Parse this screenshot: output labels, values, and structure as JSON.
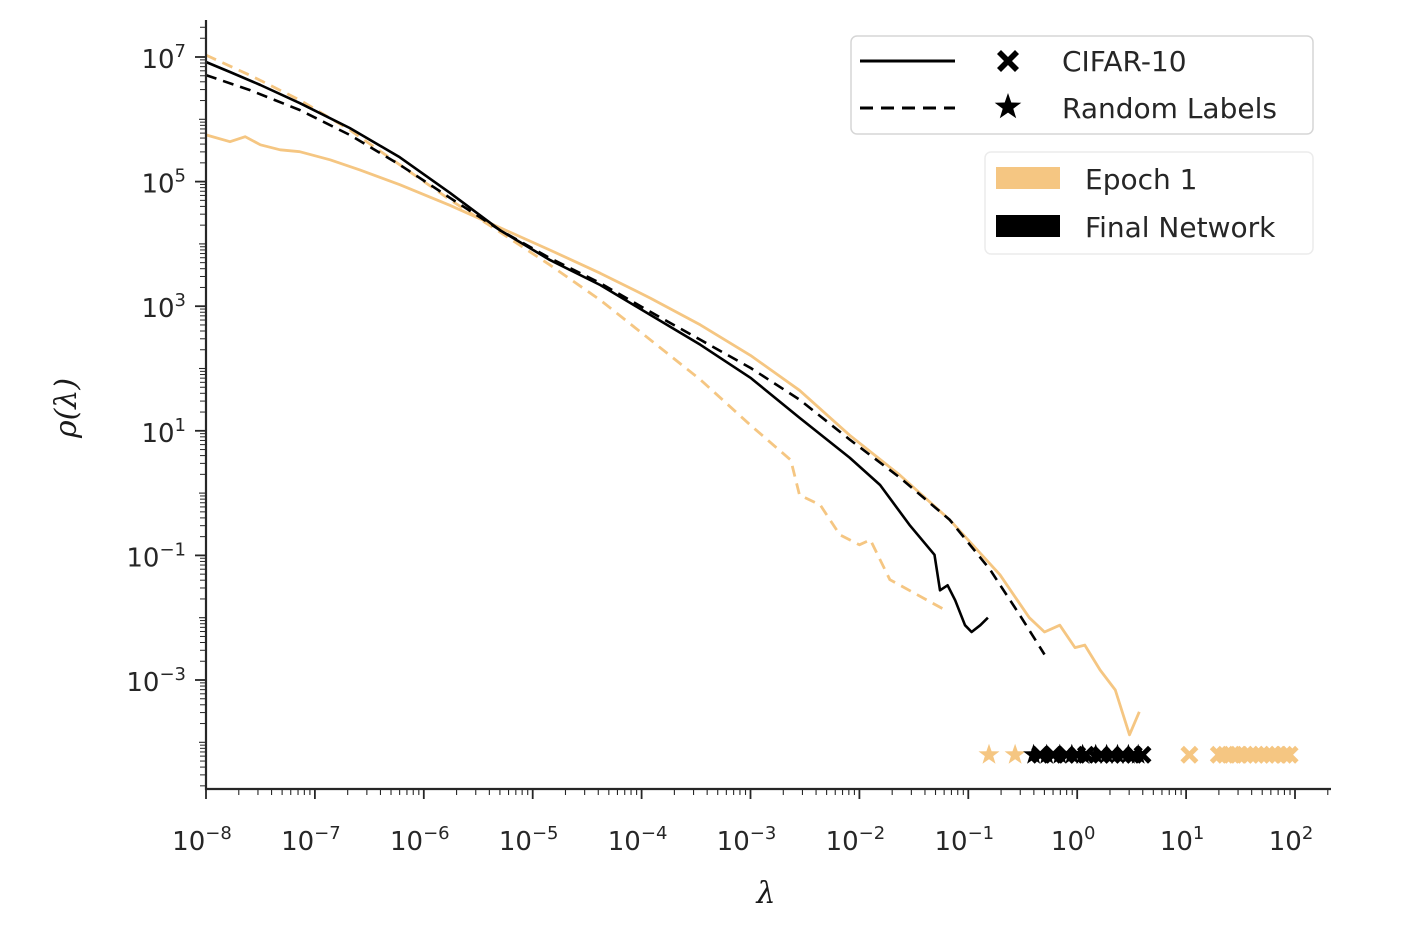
{
  "chart_data": {
    "type": "line",
    "title": "",
    "xlabel": "λ",
    "ylabel": "ρ(λ)",
    "xscale": "log",
    "yscale": "log",
    "xlim_log10": [
      -8.0,
      2.32
    ],
    "ylim_log10": [
      -4.73,
      7.6
    ],
    "grid": false,
    "x_ticks": [
      {
        "base": "10",
        "exp": "−8",
        "log10": -8
      },
      {
        "base": "10",
        "exp": "−7",
        "log10": -7
      },
      {
        "base": "10",
        "exp": "−6",
        "log10": -6
      },
      {
        "base": "10",
        "exp": "−5",
        "log10": -5
      },
      {
        "base": "10",
        "exp": "−4",
        "log10": -4
      },
      {
        "base": "10",
        "exp": "−3",
        "log10": -3
      },
      {
        "base": "10",
        "exp": "−2",
        "log10": -2
      },
      {
        "base": "10",
        "exp": "−1",
        "log10": -1
      },
      {
        "base": "10",
        "exp": "0",
        "log10": 0
      },
      {
        "base": "10",
        "exp": "1",
        "log10": 1
      },
      {
        "base": "10",
        "exp": "2",
        "log10": 2
      }
    ],
    "y_ticks": [
      {
        "base": "10",
        "exp": "7",
        "log10": 7
      },
      {
        "base": "10",
        "exp": "5",
        "log10": 5
      },
      {
        "base": "10",
        "exp": "3",
        "log10": 3
      },
      {
        "base": "10",
        "exp": "1",
        "log10": 1
      },
      {
        "base": "10",
        "exp": "−1",
        "log10": -1
      },
      {
        "base": "10",
        "exp": "−3",
        "log10": -3
      }
    ],
    "colors": {
      "epoch1": "#F5C682",
      "final": "#000000",
      "axis": "#262626"
    },
    "series": [
      {
        "name": "CIFAR-10, Epoch 1",
        "dataset": "CIFAR-10",
        "stage": "Epoch 1",
        "style": "solid",
        "color": "#F5C682",
        "log10_x": [
          -8.0,
          -7.78,
          -7.64,
          -7.5,
          -7.32,
          -7.14,
          -6.86,
          -6.59,
          -6.22,
          -5.76,
          -5.3,
          -4.84,
          -4.38,
          -3.92,
          -3.46,
          -3.0,
          -2.55,
          -2.09,
          -1.63,
          -1.17,
          -0.71,
          -0.44,
          -0.3,
          -0.16,
          -0.02,
          0.07,
          0.21,
          0.35,
          0.48,
          0.57
        ],
        "log10_y": [
          5.75,
          5.64,
          5.72,
          5.59,
          5.51,
          5.48,
          5.35,
          5.19,
          4.95,
          4.62,
          4.26,
          3.9,
          3.53,
          3.13,
          2.7,
          2.21,
          1.65,
          0.93,
          0.29,
          -0.43,
          -1.31,
          -2.0,
          -2.23,
          -2.12,
          -2.48,
          -2.44,
          -2.84,
          -3.16,
          -3.88,
          -3.51
        ]
      },
      {
        "name": "CIFAR-10, Final Network",
        "dataset": "CIFAR-10",
        "stage": "Final Network",
        "style": "solid",
        "color": "#000000",
        "log10_x": [
          -8.0,
          -7.78,
          -7.5,
          -7.14,
          -6.68,
          -6.22,
          -5.76,
          -5.3,
          -4.84,
          -4.38,
          -3.92,
          -3.46,
          -3.0,
          -2.55,
          -2.09,
          -1.81,
          -1.54,
          -1.31,
          -1.26,
          -1.19,
          -1.12,
          -1.03,
          -0.97,
          -0.89,
          -0.82
        ],
        "log10_y": [
          6.92,
          6.76,
          6.55,
          6.26,
          5.86,
          5.39,
          4.82,
          4.22,
          3.74,
          3.34,
          2.86,
          2.38,
          1.85,
          1.21,
          0.57,
          0.13,
          -0.51,
          -0.99,
          -1.56,
          -1.48,
          -1.72,
          -2.12,
          -2.23,
          -2.12,
          -2.0
        ]
      },
      {
        "name": "Random Labels, Epoch 1",
        "dataset": "Random Labels",
        "stage": "Epoch 1",
        "style": "dashed",
        "color": "#F5C682",
        "log10_x": [
          -8.0,
          -7.6,
          -7.14,
          -6.68,
          -6.22,
          -5.76,
          -5.3,
          -4.84,
          -4.38,
          -3.92,
          -3.46,
          -3.0,
          -2.63,
          -2.55,
          -2.36,
          -2.18,
          -2.0,
          -1.9,
          -1.72,
          -1.22
        ],
        "log10_y": [
          7.03,
          6.71,
          6.31,
          5.83,
          5.27,
          4.71,
          4.19,
          3.66,
          3.1,
          2.46,
          1.82,
          1.09,
          0.53,
          -0.03,
          -0.19,
          -0.67,
          -0.83,
          -0.75,
          -1.39,
          -1.87
        ]
      },
      {
        "name": "Random Labels, Final Network",
        "dataset": "Random Labels",
        "stage": "Final Network",
        "style": "dashed",
        "color": "#000000",
        "log10_x": [
          -8.0,
          -7.6,
          -7.14,
          -6.68,
          -6.22,
          -5.76,
          -5.3,
          -4.84,
          -4.38,
          -3.92,
          -3.46,
          -3.0,
          -2.55,
          -2.09,
          -1.63,
          -1.17,
          -0.8,
          -0.53,
          -0.3
        ],
        "log10_y": [
          6.71,
          6.47,
          6.15,
          5.75,
          5.27,
          4.74,
          4.22,
          3.77,
          3.37,
          2.91,
          2.46,
          2.01,
          1.5,
          0.86,
          0.25,
          -0.43,
          -1.23,
          -1.95,
          -2.59
        ]
      }
    ],
    "outlier_markers": {
      "log10_y": -4.2,
      "groups": [
        {
          "name": "Random Labels, Epoch 1 outliers",
          "marker": "star",
          "color": "#F5C682",
          "log10_x": [
            -0.81,
            -0.57
          ]
        },
        {
          "name": "CIFAR-10, Epoch 1 outliers",
          "marker": "x",
          "color": "#F5C682",
          "log10_x": [
            1.03,
            1.3,
            1.36,
            1.42,
            1.48,
            1.54,
            1.59,
            1.64,
            1.69,
            1.74,
            1.79,
            1.84,
            1.9,
            1.95
          ]
        },
        {
          "name": "Final Network outliers (low)",
          "marker": "mixed",
          "color": "#000000",
          "log10_x": [
            -0.4,
            -0.34,
            -0.28,
            -0.22,
            -0.16,
            -0.1,
            -0.05,
            0.0,
            0.05,
            0.08
          ]
        },
        {
          "name": "Final Network outliers (high)",
          "marker": "mixed",
          "color": "#000000",
          "log10_x": [
            0.17,
            0.22,
            0.27,
            0.32,
            0.37,
            0.42,
            0.47,
            0.52,
            0.56,
            0.6
          ]
        }
      ]
    },
    "legends": [
      {
        "placement": "top-right",
        "entries": [
          {
            "label": "CIFAR-10",
            "line": "solid",
            "marker": "x"
          },
          {
            "label": "Random Labels",
            "line": "dashed",
            "marker": "star"
          }
        ]
      },
      {
        "placement": "top-right",
        "entries": [
          {
            "label": "Epoch 1",
            "color": "#F5C682"
          },
          {
            "label": "Final Network",
            "color": "#000000"
          }
        ]
      }
    ]
  }
}
